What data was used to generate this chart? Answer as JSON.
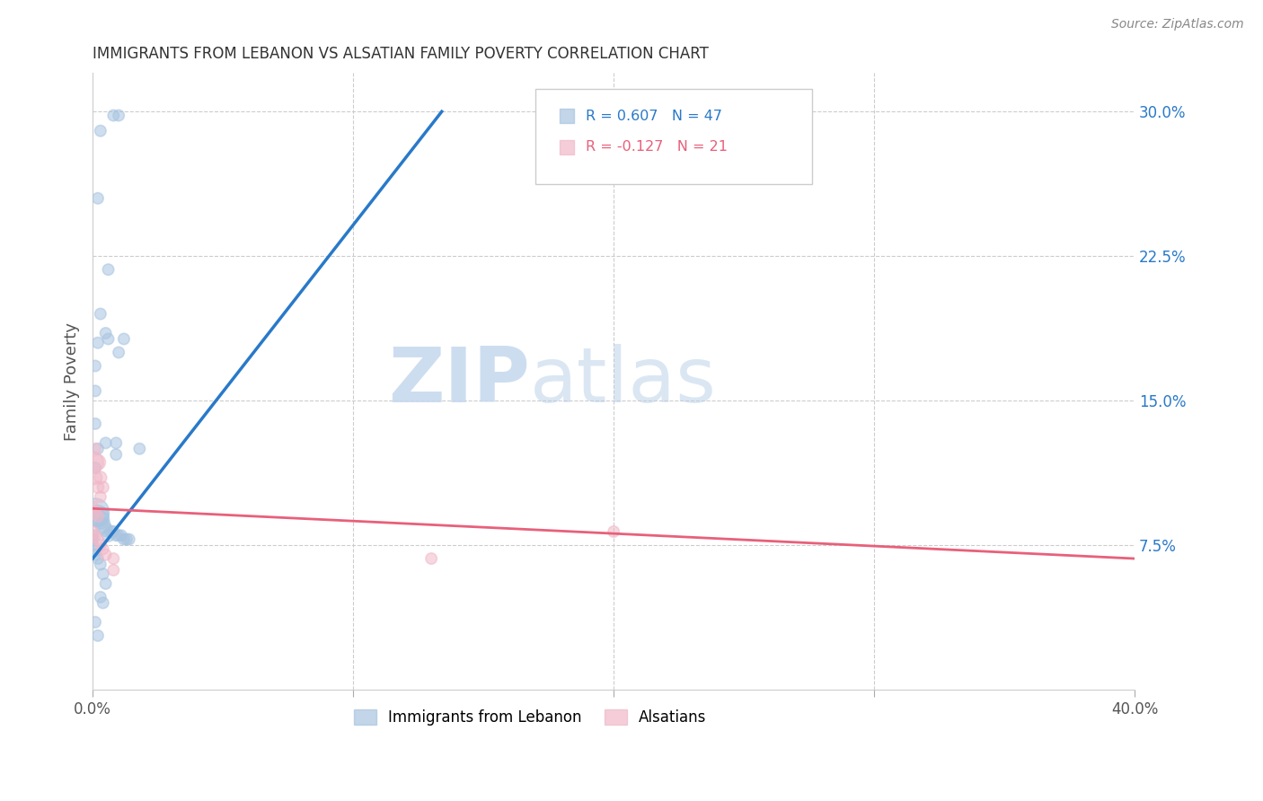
{
  "title": "IMMIGRANTS FROM LEBANON VS ALSATIAN FAMILY POVERTY CORRELATION CHART",
  "source": "Source: ZipAtlas.com",
  "ylabel": "Family Poverty",
  "right_yticks": [
    "7.5%",
    "15.0%",
    "22.5%",
    "30.0%"
  ],
  "right_ytick_vals": [
    0.075,
    0.15,
    0.225,
    0.3
  ],
  "legend1_R": "0.607",
  "legend1_N": "47",
  "legend2_R": "-0.127",
  "legend2_N": "21",
  "blue_color": "#a8c4e0",
  "pink_color": "#f0b8c8",
  "blue_line_color": "#2979c9",
  "pink_line_color": "#e8607a",
  "watermark_zip": "ZIP",
  "watermark_atlas": "atlas",
  "xlim": [
    0.0,
    0.4
  ],
  "ylim": [
    0.0,
    0.32
  ],
  "blue_scatter": [
    [
      0.01,
      0.298
    ],
    [
      0.003,
      0.29
    ],
    [
      0.008,
      0.298
    ],
    [
      0.002,
      0.255
    ],
    [
      0.006,
      0.218
    ],
    [
      0.003,
      0.195
    ],
    [
      0.002,
      0.18
    ],
    [
      0.001,
      0.168
    ],
    [
      0.005,
      0.185
    ],
    [
      0.006,
      0.182
    ],
    [
      0.012,
      0.182
    ],
    [
      0.01,
      0.175
    ],
    [
      0.001,
      0.155
    ],
    [
      0.001,
      0.138
    ],
    [
      0.002,
      0.125
    ],
    [
      0.001,
      0.115
    ],
    [
      0.005,
      0.128
    ],
    [
      0.009,
      0.128
    ],
    [
      0.009,
      0.122
    ],
    [
      0.018,
      0.125
    ],
    [
      0.001,
      0.092
    ],
    [
      0.002,
      0.09
    ],
    [
      0.003,
      0.088
    ],
    [
      0.004,
      0.085
    ],
    [
      0.005,
      0.083
    ],
    [
      0.006,
      0.08
    ],
    [
      0.007,
      0.082
    ],
    [
      0.008,
      0.082
    ],
    [
      0.009,
      0.08
    ],
    [
      0.01,
      0.08
    ],
    [
      0.011,
      0.08
    ],
    [
      0.012,
      0.078
    ],
    [
      0.013,
      0.078
    ],
    [
      0.014,
      0.078
    ],
    [
      0.0,
      0.08
    ],
    [
      0.0,
      0.078
    ],
    [
      0.0,
      0.075
    ],
    [
      0.001,
      0.072
    ],
    [
      0.001,
      0.07
    ],
    [
      0.002,
      0.068
    ],
    [
      0.003,
      0.065
    ],
    [
      0.004,
      0.06
    ],
    [
      0.005,
      0.055
    ],
    [
      0.003,
      0.048
    ],
    [
      0.004,
      0.045
    ],
    [
      0.001,
      0.035
    ],
    [
      0.002,
      0.028
    ]
  ],
  "blue_sizes": [
    80,
    80,
    80,
    80,
    80,
    80,
    80,
    80,
    80,
    80,
    80,
    80,
    80,
    80,
    80,
    80,
    80,
    80,
    80,
    80,
    500,
    300,
    200,
    150,
    120,
    100,
    90,
    85,
    80,
    80,
    80,
    80,
    80,
    80,
    80,
    80,
    80,
    80,
    80,
    80,
    80,
    80,
    80,
    80,
    80,
    80,
    80
  ],
  "pink_scatter": [
    [
      0.001,
      0.125
    ],
    [
      0.0,
      0.118
    ],
    [
      0.002,
      0.118
    ],
    [
      0.001,
      0.11
    ],
    [
      0.003,
      0.11
    ],
    [
      0.002,
      0.105
    ],
    [
      0.004,
      0.105
    ],
    [
      0.003,
      0.1
    ],
    [
      0.0,
      0.095
    ],
    [
      0.001,
      0.092
    ],
    [
      0.002,
      0.09
    ],
    [
      0.0,
      0.082
    ],
    [
      0.001,
      0.08
    ],
    [
      0.002,
      0.078
    ],
    [
      0.003,
      0.075
    ],
    [
      0.004,
      0.073
    ],
    [
      0.005,
      0.07
    ],
    [
      0.008,
      0.068
    ],
    [
      0.008,
      0.062
    ],
    [
      0.2,
      0.082
    ],
    [
      0.13,
      0.068
    ]
  ],
  "pink_sizes": [
    80,
    300,
    150,
    120,
    100,
    90,
    85,
    80,
    80,
    80,
    80,
    80,
    80,
    80,
    80,
    80,
    80,
    80,
    80,
    80,
    80
  ],
  "blue_trendline": [
    [
      0.0,
      0.068
    ],
    [
      0.134,
      0.3
    ]
  ],
  "pink_trendline": [
    [
      0.0,
      0.094
    ],
    [
      0.4,
      0.068
    ]
  ]
}
